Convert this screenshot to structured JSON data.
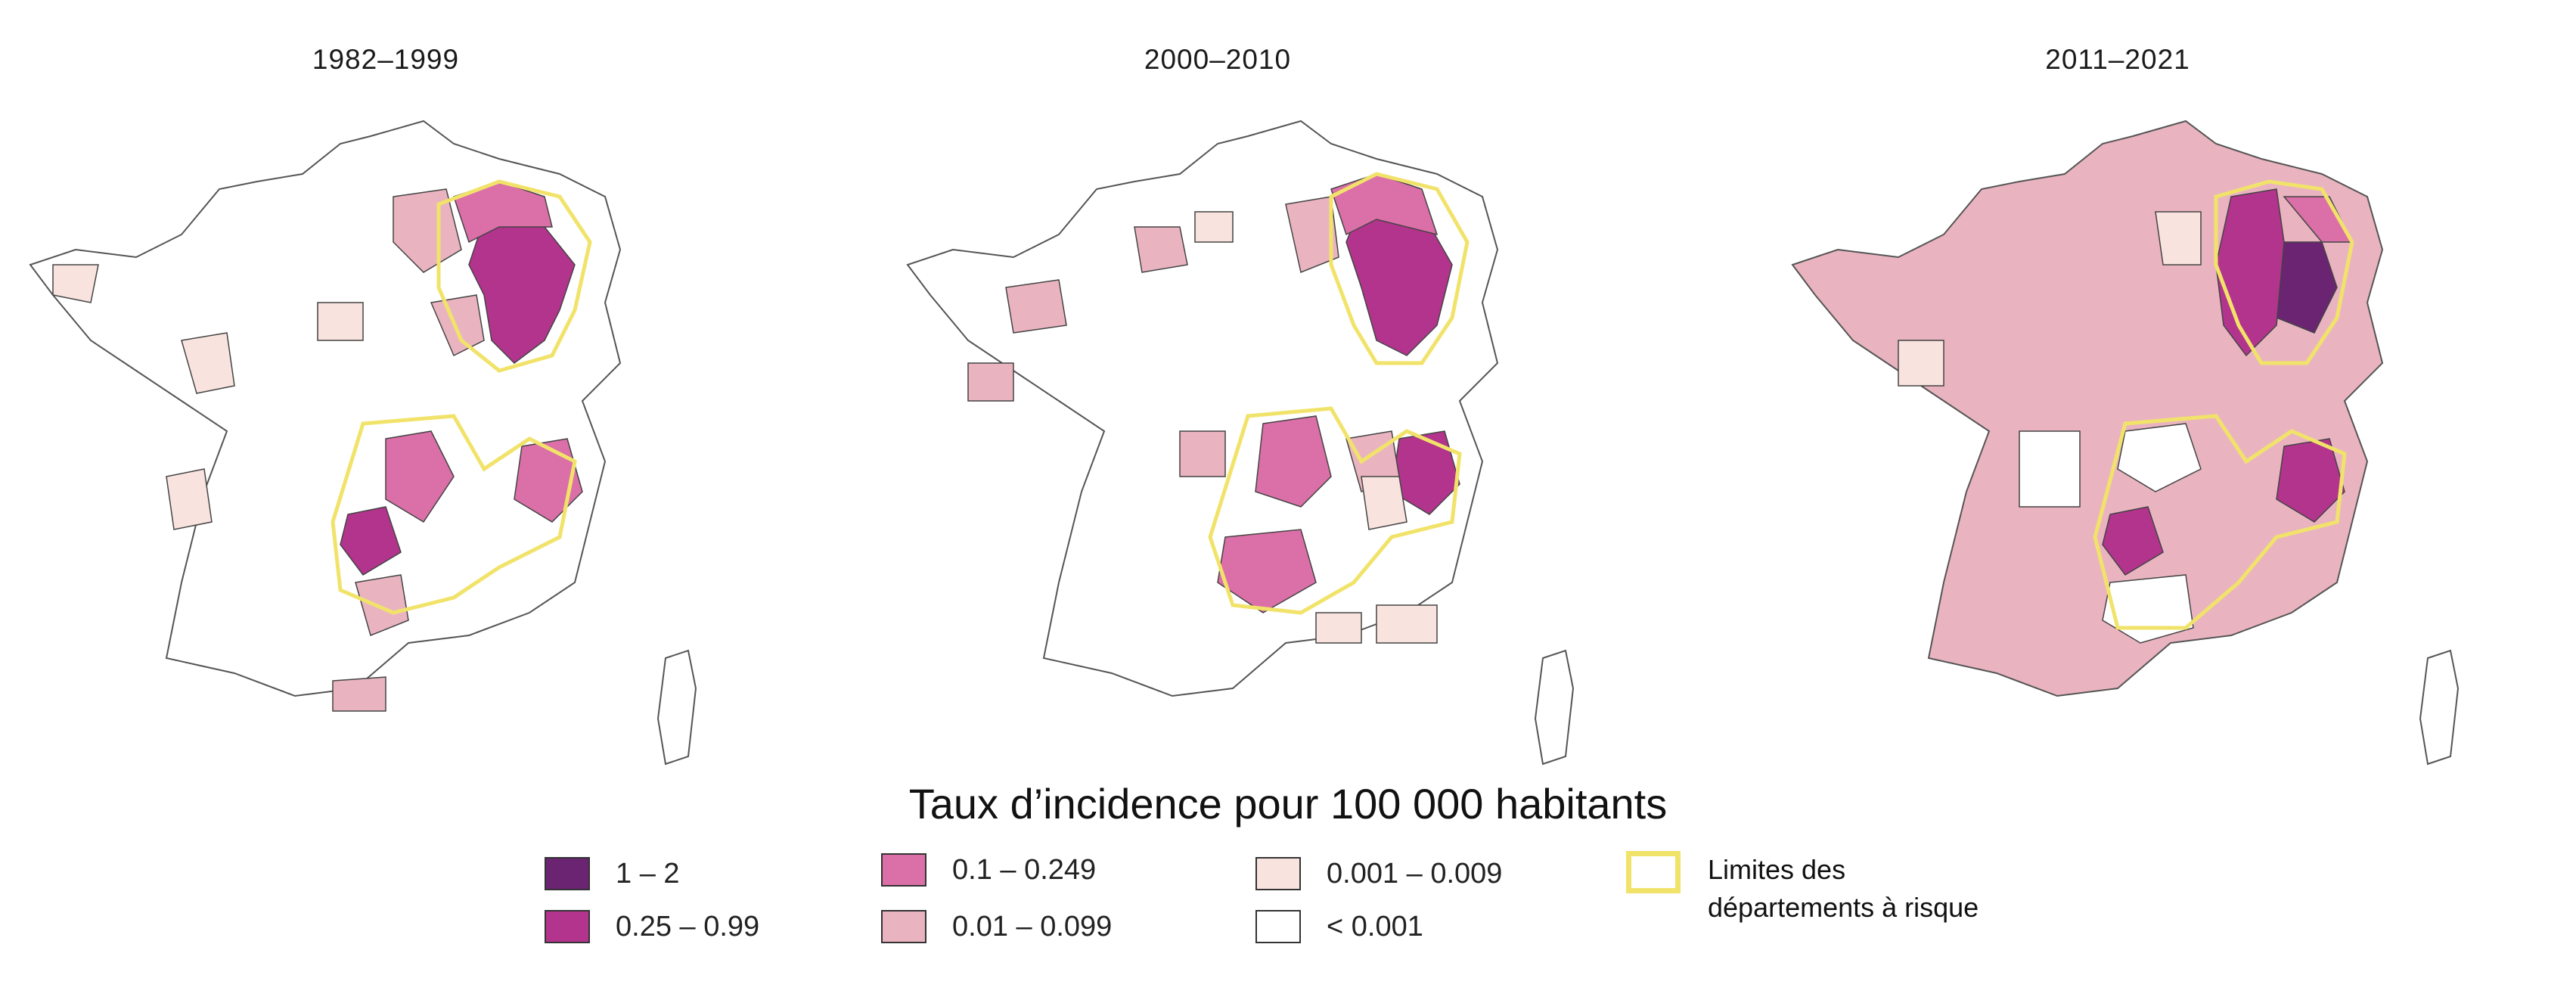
{
  "panels": [
    {
      "title": "1982–1999"
    },
    {
      "title": "2000–2010"
    },
    {
      "title": "2011–2021"
    }
  ],
  "legend": {
    "title": "Taux d’incidence pour 100 000 habitants",
    "classes": [
      {
        "label": "1 – 2",
        "color": "#6a2472"
      },
      {
        "label": "0.25 – 0.99",
        "color": "#b3348d"
      },
      {
        "label": "0.1 – 0.249",
        "color": "#db6fa8"
      },
      {
        "label": "0.01 – 0.099",
        "color": "#e9b4c0"
      },
      {
        "label": "0.001 – 0.009",
        "color": "#f9e3df"
      },
      {
        "label": "< 0.001",
        "color": "#ffffff"
      }
    ],
    "risk": {
      "line1": "Limites des",
      "line2": "départements à risque",
      "color": "#f1e36a"
    }
  }
}
